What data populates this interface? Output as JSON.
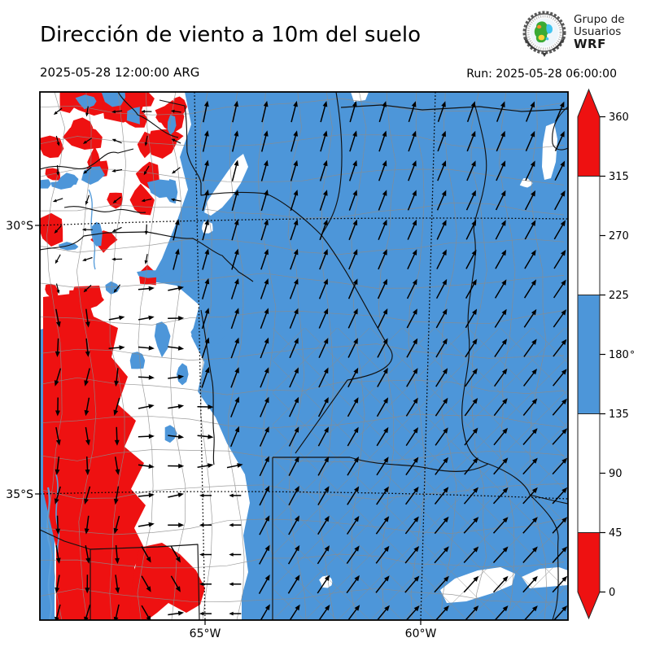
{
  "header": {
    "title": "Dirección de viento a 10m del suelo",
    "valid_time": "2025-05-28 12:00:00 ARG",
    "run_label": "Run: 2025-05-28 06:00:00",
    "logo": {
      "line1": "Grupo de",
      "line2": "Usuarios",
      "line3": "WRF"
    }
  },
  "map": {
    "lat_ticks": [
      "30°S",
      "35°S"
    ],
    "lon_ticks": [
      "65°W",
      "60°W"
    ],
    "colors": {
      "south_wind_blue": "#4D96D9",
      "north_wind_red": "#EE1111",
      "east_west_white": "#FFFFFF",
      "dept_boundary_gray": "#8c8c8c",
      "province_boundary_black": "#111111",
      "arrow_black": "#000000",
      "river_blue": "#5B9FDB",
      "frame_black": "#000000"
    },
    "arrows": {
      "grid_spacing": 36.3,
      "length_blue": 27,
      "length_white": 20,
      "length_red": 23,
      "length_mosaic": 13
    }
  },
  "colorbar": {
    "unit": "°",
    "ticks": [
      "0",
      "45",
      "90",
      "135",
      "180",
      "225",
      "270",
      "315",
      "360"
    ],
    "tick_values": [
      0,
      45,
      90,
      135,
      180,
      225,
      270,
      315,
      360
    ],
    "segments": [
      {
        "from": 0,
        "to": 45,
        "color": "#EE1111"
      },
      {
        "from": 45,
        "to": 135,
        "color": "#FFFFFF"
      },
      {
        "from": 135,
        "to": 225,
        "color": "#4D96D9"
      },
      {
        "from": 225,
        "to": 315,
        "color": "#FFFFFF"
      },
      {
        "from": 315,
        "to": 360,
        "color": "#EE1111"
      }
    ],
    "extend": "both",
    "extend_color": "#EE1111"
  },
  "chart_data": {
    "type": "heatmap",
    "title": "Dirección de viento a 10m del suelo",
    "valid_time": "2025-05-28 12:00:00 ARG",
    "run": "2025-05-28 06:00:00",
    "colorbar_unit": "degrees",
    "colorbar_ticks": [
      0,
      45,
      90,
      135,
      180,
      225,
      270,
      315,
      360
    ],
    "color_scale": [
      {
        "range": [
          0,
          45
        ],
        "color": "#EE1111"
      },
      {
        "range": [
          45,
          135
        ],
        "color": "#FFFFFF"
      },
      {
        "range": [
          135,
          225
        ],
        "color": "#4D96D9"
      },
      {
        "range": [
          225,
          315
        ],
        "color": "#FFFFFF"
      },
      {
        "range": [
          315,
          360
        ],
        "color": "#EE1111"
      }
    ],
    "x_ticks": [
      "65°W",
      "60°W"
    ],
    "y_ticks": [
      "30°S",
      "35°S"
    ]
  }
}
